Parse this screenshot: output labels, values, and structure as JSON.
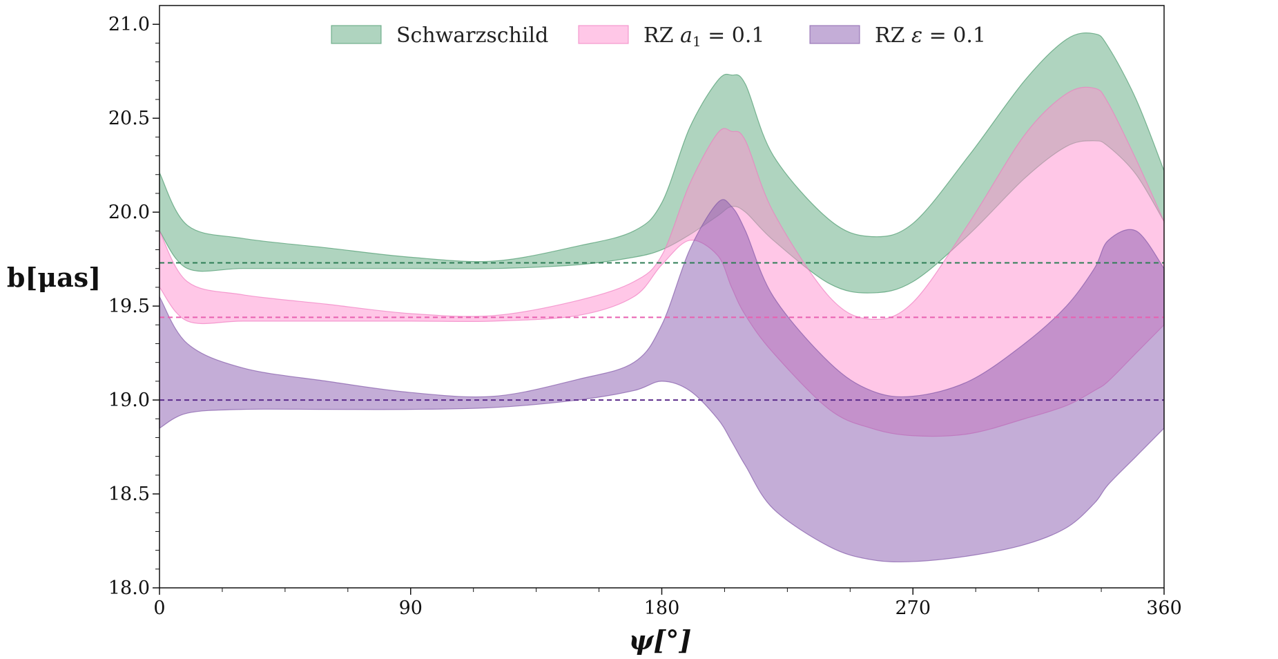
{
  "chart_data": {
    "type": "area",
    "title": "",
    "xlabel": "ψ[°]",
    "ylabel": "b[μas]",
    "xlim": [
      0,
      360
    ],
    "ylim": [
      18.0,
      21.1
    ],
    "xticks": [
      0,
      90,
      180,
      270,
      360
    ],
    "xtick_labels": [
      "0",
      "90",
      "180",
      "270",
      "360"
    ],
    "yticks": [
      18.0,
      18.5,
      19.0,
      19.5,
      20.0,
      20.5,
      21.0
    ],
    "ytick_labels": [
      "18.0",
      "18.5",
      "19.0",
      "19.5",
      "20.0",
      "20.5",
      "21.0"
    ],
    "legend_position": "top-center",
    "x": [
      0,
      10,
      30,
      60,
      90,
      120,
      150,
      170,
      180,
      190,
      200,
      205,
      210,
      220,
      240,
      255,
      270,
      290,
      310,
      325,
      335,
      340,
      350,
      360
    ],
    "series": [
      {
        "name": "Schwarzschild",
        "legend_parts": [
          "Schwarzschild"
        ],
        "color": "#5faa80",
        "edge_color": "#4c9a6e",
        "upper": [
          20.21,
          19.93,
          19.86,
          19.81,
          19.76,
          19.74,
          19.82,
          19.9,
          20.05,
          20.45,
          20.7,
          20.73,
          20.68,
          20.3,
          19.96,
          19.87,
          19.94,
          20.3,
          20.7,
          20.92,
          20.95,
          20.88,
          20.6,
          20.22
        ],
        "lower": [
          19.9,
          19.7,
          19.7,
          19.7,
          19.7,
          19.7,
          19.72,
          19.76,
          19.8,
          19.88,
          19.98,
          20.03,
          20.0,
          19.85,
          19.62,
          19.57,
          19.63,
          19.88,
          20.18,
          20.35,
          20.38,
          20.35,
          20.2,
          19.95
        ],
        "reference": 19.73,
        "ref_color": "#2e7d55"
      },
      {
        "name": "RZ a1 = 0.1",
        "legend_parts": [
          "RZ ",
          "a",
          "1",
          " = 0.1"
        ],
        "color": "#ff8fcf",
        "edge_color": "#f07cc0",
        "upper": [
          19.9,
          19.63,
          19.56,
          19.51,
          19.46,
          19.45,
          19.53,
          19.63,
          19.77,
          20.15,
          20.42,
          20.43,
          20.38,
          20.0,
          19.55,
          19.43,
          19.52,
          19.94,
          20.41,
          20.63,
          20.66,
          20.58,
          20.28,
          19.95
        ],
        "lower": [
          19.6,
          19.42,
          19.42,
          19.42,
          19.42,
          19.42,
          19.45,
          19.55,
          19.72,
          19.85,
          19.77,
          19.6,
          19.45,
          19.25,
          18.95,
          18.85,
          18.81,
          18.82,
          18.9,
          18.97,
          19.05,
          19.1,
          19.25,
          19.4
        ],
        "reference": 19.44,
        "ref_color": "#e860b0"
      },
      {
        "name": "RZ ε = 0.1",
        "legend_parts": [
          "RZ ",
          "ε",
          " = 0.1"
        ],
        "color": "#8a5bb0",
        "edge_color": "#8259a8",
        "upper": [
          19.55,
          19.3,
          19.17,
          19.1,
          19.04,
          19.02,
          19.11,
          19.2,
          19.4,
          19.8,
          20.05,
          20.03,
          19.9,
          19.55,
          19.2,
          19.05,
          19.02,
          19.1,
          19.3,
          19.5,
          19.7,
          19.85,
          19.9,
          19.7
        ],
        "lower": [
          18.85,
          18.93,
          18.95,
          18.95,
          18.95,
          18.96,
          19.0,
          19.05,
          19.1,
          19.05,
          18.9,
          18.78,
          18.65,
          18.42,
          18.22,
          18.15,
          18.14,
          18.17,
          18.23,
          18.32,
          18.45,
          18.55,
          18.7,
          18.85
        ],
        "reference": 19.0,
        "ref_color": "#5a2a8a"
      }
    ]
  }
}
